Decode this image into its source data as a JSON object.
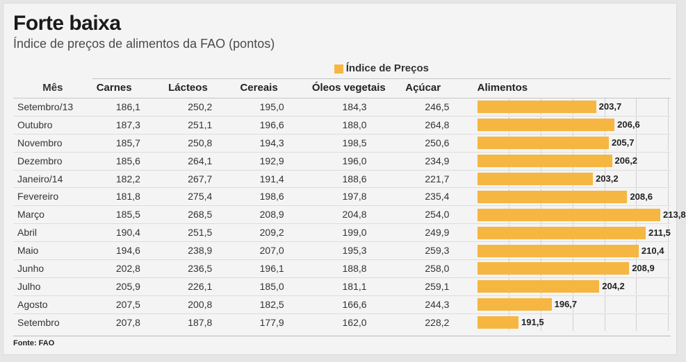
{
  "title": "Forte baixa",
  "subtitle": "Índice de preços de alimentos da FAO (pontos)",
  "source_label": "Fonte: FAO",
  "headers": {
    "mes": "Mês",
    "indice_group": "Índice de Preços",
    "carnes": "Carnes",
    "lacteos": "Lácteos",
    "cereais": "Cereais",
    "oleos": "Óleos vegetais",
    "acucar": "Açúcar",
    "alimentos": "Alimentos"
  },
  "legend_swatch_color": "#f5b642",
  "bar": {
    "axis_min": 185,
    "axis_max": 215,
    "grid_ticks": [
      190,
      195,
      200,
      205,
      210,
      215
    ],
    "fill_color": "#f5b642",
    "grid_color": "#d0d0d0",
    "label_fontsize": 13,
    "label_fontweight": 700
  },
  "rows": [
    {
      "mes": "Setembro/13",
      "carnes": "186,1",
      "lacteos": "250,2",
      "cereais": "195,0",
      "oleos": "184,3",
      "acucar": "246,5",
      "alimentos_label": "203,7",
      "alimentos_value": 203.7
    },
    {
      "mes": "Outubro",
      "carnes": "187,3",
      "lacteos": "251,1",
      "cereais": "196,6",
      "oleos": "188,0",
      "acucar": "264,8",
      "alimentos_label": "206,6",
      "alimentos_value": 206.6
    },
    {
      "mes": "Novembro",
      "carnes": "185,7",
      "lacteos": "250,8",
      "cereais": "194,3",
      "oleos": "198,5",
      "acucar": "250,6",
      "alimentos_label": "205,7",
      "alimentos_value": 205.7
    },
    {
      "mes": "Dezembro",
      "carnes": "185,6",
      "lacteos": "264,1",
      "cereais": "192,9",
      "oleos": "196,0",
      "acucar": "234,9",
      "alimentos_label": "206,2",
      "alimentos_value": 206.2
    },
    {
      "mes": "Janeiro/14",
      "carnes": "182,2",
      "lacteos": "267,7",
      "cereais": "191,4",
      "oleos": "188,6",
      "acucar": "221,7",
      "alimentos_label": "203,2",
      "alimentos_value": 203.2
    },
    {
      "mes": "Fevereiro",
      "carnes": "181,8",
      "lacteos": "275,4",
      "cereais": "198,6",
      "oleos": "197,8",
      "acucar": "235,4",
      "alimentos_label": "208,6",
      "alimentos_value": 208.6
    },
    {
      "mes": "Março",
      "carnes": "185,5",
      "lacteos": "268,5",
      "cereais": "208,9",
      "oleos": "204,8",
      "acucar": "254,0",
      "alimentos_label": "213,8",
      "alimentos_value": 213.8
    },
    {
      "mes": "Abril",
      "carnes": "190,4",
      "lacteos": "251,5",
      "cereais": "209,2",
      "oleos": "199,0",
      "acucar": "249,9",
      "alimentos_label": "211,5",
      "alimentos_value": 211.5
    },
    {
      "mes": "Maio",
      "carnes": "194,6",
      "lacteos": "238,9",
      "cereais": "207,0",
      "oleos": "195,3",
      "acucar": "259,3",
      "alimentos_label": "210,4",
      "alimentos_value": 210.4
    },
    {
      "mes": "Junho",
      "carnes": "202,8",
      "lacteos": "236,5",
      "cereais": "196,1",
      "oleos": "188,8",
      "acucar": "258,0",
      "alimentos_label": "208,9",
      "alimentos_value": 208.9
    },
    {
      "mes": "Julho",
      "carnes": "205,9",
      "lacteos": "226,1",
      "cereais": "185,0",
      "oleos": "181,1",
      "acucar": "259,1",
      "alimentos_label": "204,2",
      "alimentos_value": 204.2
    },
    {
      "mes": "Agosto",
      "carnes": "207,5",
      "lacteos": "200,8",
      "cereais": "182,5",
      "oleos": "166,6",
      "acucar": "244,3",
      "alimentos_label": "196,7",
      "alimentos_value": 196.7
    },
    {
      "mes": "Setembro",
      "carnes": "207,8",
      "lacteos": "187,8",
      "cereais": "177,9",
      "oleos": "162,0",
      "acucar": "228,2",
      "alimentos_label": "191,5",
      "alimentos_value": 191.5
    }
  ],
  "colors": {
    "background": "#f4f4f4",
    "row_border": "#dcdcdc",
    "header_border": "#c5c5c5",
    "text": "#333333",
    "title": "#1a1a1a",
    "subtitle": "#4a4a4a"
  },
  "typography": {
    "title_fontsize": 30,
    "title_fontweight": 900,
    "subtitle_fontsize": 18,
    "header_fontsize": 15,
    "cell_fontsize": 14,
    "source_fontsize": 11
  }
}
